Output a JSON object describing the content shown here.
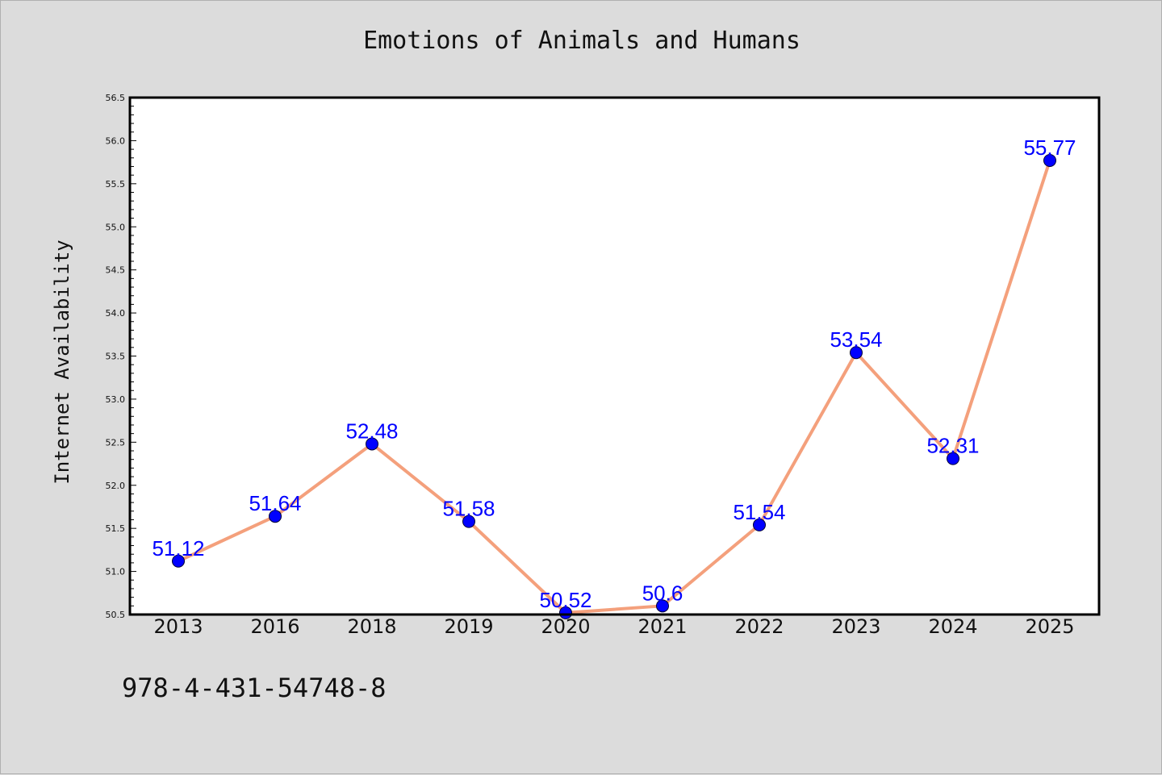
{
  "chart_data": {
    "type": "line",
    "title": "Emotions of Animals and Humans",
    "xlabel": "",
    "ylabel": "Internet Availability",
    "categories": [
      "2013",
      "2016",
      "2018",
      "2019",
      "2020",
      "2021",
      "2022",
      "2023",
      "2024",
      "2025"
    ],
    "series": [
      {
        "values": [
          51.12,
          51.64,
          52.48,
          51.58,
          50.52,
          50.6,
          51.54,
          53.54,
          52.31,
          55.77
        ],
        "labels": [
          "51.12",
          "51.64",
          "52.48",
          "51.58",
          "50.52",
          "50.6",
          "51.54",
          "53.54",
          "52.31",
          "55.77"
        ],
        "line_color": "#f4a07c",
        "marker_color": "#0000ff"
      }
    ],
    "ylim": [
      50.5,
      56.5
    ],
    "yticks": [
      "50.5",
      "51.0",
      "51.5",
      "52.0",
      "52.5",
      "53.0",
      "53.5",
      "54.0",
      "54.5",
      "55.0",
      "55.5",
      "56.0",
      "56.5"
    ],
    "grid": false,
    "legend": "none"
  },
  "footer": {
    "isbn": "978-4-431-54748-8"
  },
  "colors": {
    "background": "#dcdcdc",
    "plot_area": "#ffffff",
    "line": "#f4a07c",
    "marker": "#0000ff",
    "data_label": "#0000ff"
  }
}
